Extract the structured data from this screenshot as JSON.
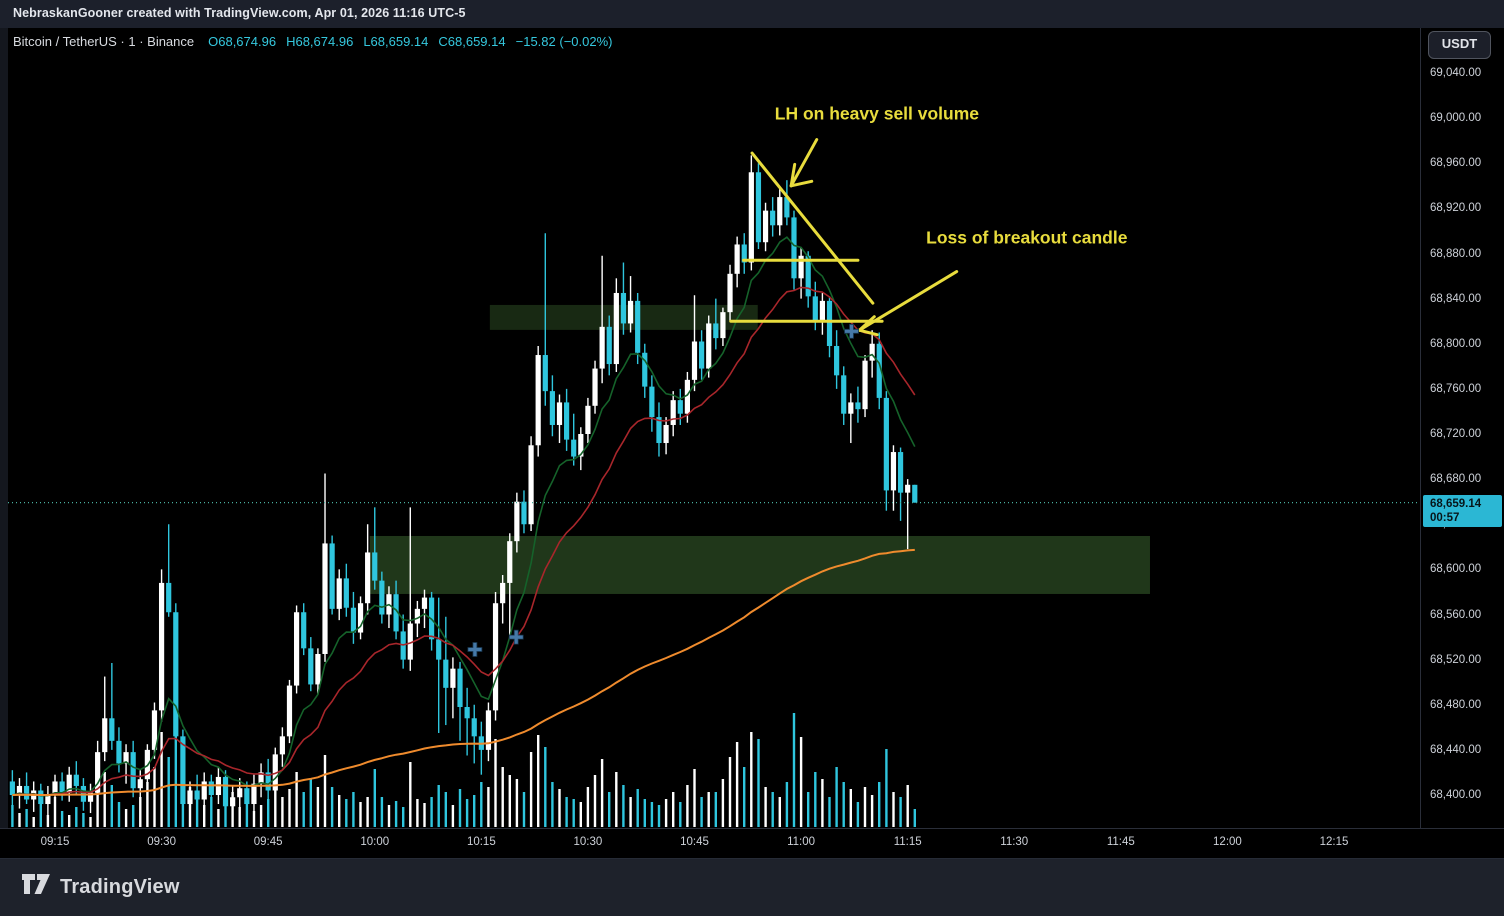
{
  "topbar": {
    "watermark": "NebraskanGooner created with TradingView.com, Apr 01, 2026 11:16 UTC-5"
  },
  "legend": {
    "symbol": "Bitcoin / TetherUS · 1 · Binance",
    "ohlc": [
      "O68,674.96",
      "H68,674.96",
      "L68,659.14",
      "C68,659.14"
    ],
    "change": "−15.82 (−0.02%)"
  },
  "price_axis": {
    "currency_button": "USDT",
    "labels": [
      "69,040.00",
      "69,000.00",
      "68,960.00",
      "68,920.00",
      "68,880.00",
      "68,840.00",
      "68,800.00",
      "68,760.00",
      "68,720.00",
      "68,680.00",
      "68,640.00",
      "68,600.00",
      "68,560.00",
      "68,520.00",
      "68,480.00",
      "68,440.00",
      "68,400.00"
    ],
    "last_price_badge": {
      "price": "68,659.14",
      "countdown": "00:57"
    }
  },
  "time_axis": {
    "labels": [
      "09:15",
      "09:30",
      "09:45",
      "10:00",
      "10:15",
      "10:30",
      "10:45",
      "11:00",
      "11:15",
      "11:30",
      "11:45",
      "12:00",
      "12:15"
    ]
  },
  "footer": {
    "brand": "TradingView"
  },
  "colors": {
    "background": "#000000",
    "topbar_bg": "#1c202b",
    "footer_bg": "#1e222b",
    "up": "#ffffff",
    "down": "#2fc6de",
    "ma_fast": "#15622a",
    "ma_mid": "#a8262b",
    "ma_slow": "#ef8b2d",
    "zone": "#3f6d33",
    "annotation": "#e8dc3d",
    "marker": "#4679a8",
    "dotted_line": "#4ab0a0",
    "axis_text": "#ced2d9",
    "border": "#2a2e39",
    "badge_bg": "#2bb7d4"
  },
  "chart_data": {
    "type": "candlestick",
    "title": "Bitcoin / TetherUS · 1 · Binance",
    "interval": "1 minute",
    "ylabel": "Price (USDT)",
    "ylim": [
      68378,
      69080
    ],
    "visible_time_range": [
      "09:08",
      "12:21"
    ],
    "start_time": "09:09",
    "interval_min": 1,
    "last": {
      "price": 68659.14,
      "open": 68674.96,
      "high": 68674.96,
      "low": 68659.14,
      "change": -15.82,
      "change_pct": -0.02
    },
    "candles": [
      [
        68412,
        68422,
        68390,
        68400
      ],
      [
        68400,
        68415,
        68388,
        68408
      ],
      [
        68408,
        68420,
        68392,
        68396
      ],
      [
        68396,
        68412,
        68385,
        68404
      ],
      [
        68404,
        68410,
        68386,
        68392
      ],
      [
        68392,
        68408,
        68382,
        68400
      ],
      [
        68400,
        68418,
        68390,
        68412
      ],
      [
        68412,
        68420,
        68395,
        68402
      ],
      [
        68402,
        68425,
        68394,
        68418
      ],
      [
        68418,
        68430,
        68400,
        68408
      ],
      [
        68408,
        68415,
        68386,
        68394
      ],
      [
        68394,
        68410,
        68384,
        68402
      ],
      [
        68402,
        68448,
        68396,
        68438
      ],
      [
        68438,
        68505,
        68430,
        68468
      ],
      [
        68468,
        68517,
        68440,
        68448
      ],
      [
        68448,
        68460,
        68420,
        68428
      ],
      [
        68428,
        68445,
        68410,
        68438
      ],
      [
        68438,
        68448,
        68398,
        68406
      ],
      [
        68406,
        68422,
        68392,
        68414
      ],
      [
        68414,
        68445,
        68405,
        68440
      ],
      [
        68440,
        68482,
        68432,
        68475
      ],
      [
        68475,
        68600,
        68465,
        68588
      ],
      [
        68588,
        68640,
        68558,
        68562
      ],
      [
        68562,
        68570,
        68448,
        68452
      ],
      [
        68452,
        68458,
        68385,
        68392
      ],
      [
        68392,
        68412,
        68380,
        68404
      ],
      [
        68404,
        68418,
        68390,
        68396
      ],
      [
        68396,
        68420,
        68388,
        68412
      ],
      [
        68412,
        68418,
        68394,
        68400
      ],
      [
        68400,
        68425,
        68392,
        68416
      ],
      [
        68416,
        68422,
        68384,
        68390
      ],
      [
        68390,
        68408,
        68380,
        68398
      ],
      [
        68398,
        68415,
        68388,
        68406
      ],
      [
        68406,
        68412,
        68386,
        68392
      ],
      [
        68392,
        68418,
        68385,
        68410
      ],
      [
        68410,
        68428,
        68398,
        68420
      ],
      [
        68420,
        68432,
        68395,
        68404
      ],
      [
        68404,
        68442,
        68398,
        68436
      ],
      [
        68436,
        68460,
        68425,
        68452
      ],
      [
        68452,
        68502,
        68446,
        68497
      ],
      [
        68497,
        68568,
        68490,
        68562
      ],
      [
        68562,
        68570,
        68524,
        68530
      ],
      [
        68530,
        68540,
        68492,
        68498
      ],
      [
        68498,
        68530,
        68490,
        68525
      ],
      [
        68525,
        68685,
        68518,
        68623
      ],
      [
        68623,
        68630,
        68560,
        68565
      ],
      [
        68565,
        68600,
        68555,
        68592
      ],
      [
        68592,
        68605,
        68558,
        68566
      ],
      [
        68566,
        68580,
        68534,
        68544
      ],
      [
        68544,
        68576,
        68538,
        68570
      ],
      [
        68570,
        68640,
        68560,
        68615
      ],
      [
        68615,
        68655,
        68582,
        68590
      ],
      [
        68590,
        68598,
        68552,
        68560
      ],
      [
        68560,
        68585,
        68548,
        68578
      ],
      [
        68578,
        68590,
        68538,
        68545
      ],
      [
        68545,
        68560,
        68512,
        68520
      ],
      [
        68520,
        68655,
        68510,
        68552
      ],
      [
        68552,
        68572,
        68540,
        68565
      ],
      [
        68565,
        68582,
        68548,
        68575
      ],
      [
        68575,
        68580,
        68528,
        68538
      ],
      [
        68538,
        68575,
        68455,
        68520
      ],
      [
        68520,
        68558,
        68462,
        68495
      ],
      [
        68495,
        68522,
        68468,
        68512
      ],
      [
        68512,
        68518,
        68448,
        68478
      ],
      [
        68478,
        68495,
        68435,
        68468
      ],
      [
        68468,
        68480,
        68428,
        68452
      ],
      [
        68452,
        68465,
        68418,
        68440
      ],
      [
        68440,
        68482,
        68430,
        68475
      ],
      [
        68475,
        68580,
        68466,
        68570
      ],
      [
        68570,
        68595,
        68552,
        68588
      ],
      [
        68588,
        68632,
        68540,
        68625
      ],
      [
        68625,
        68668,
        68615,
        68660
      ],
      [
        68660,
        68670,
        68632,
        68640
      ],
      [
        68640,
        68718,
        68634,
        68710
      ],
      [
        68710,
        68798,
        68700,
        68790
      ],
      [
        68790,
        68898,
        68745,
        68758
      ],
      [
        68758,
        68772,
        68718,
        68728
      ],
      [
        68728,
        68755,
        68712,
        68748
      ],
      [
        68748,
        68760,
        68705,
        68715
      ],
      [
        68715,
        68738,
        68692,
        68700
      ],
      [
        68700,
        68726,
        68688,
        68720
      ],
      [
        68720,
        68752,
        68712,
        68745
      ],
      [
        68745,
        68785,
        68738,
        68778
      ],
      [
        68778,
        68878,
        68765,
        68815
      ],
      [
        68815,
        68825,
        68772,
        68782
      ],
      [
        68782,
        68858,
        68775,
        68845
      ],
      [
        68845,
        68872,
        68808,
        68818
      ],
      [
        68818,
        68860,
        68810,
        68838
      ],
      [
        68838,
        68845,
        68782,
        68792
      ],
      [
        68792,
        68800,
        68752,
        68762
      ],
      [
        68762,
        68772,
        68722,
        68735
      ],
      [
        68735,
        68748,
        68700,
        68712
      ],
      [
        68712,
        68735,
        68702,
        68728
      ],
      [
        68728,
        68758,
        68718,
        68750
      ],
      [
        68750,
        68760,
        68728,
        68738
      ],
      [
        68738,
        68775,
        68730,
        68768
      ],
      [
        68768,
        68843,
        68758,
        68802
      ],
      [
        68802,
        68812,
        68768,
        68778
      ],
      [
        68778,
        68825,
        68770,
        68818
      ],
      [
        68818,
        68840,
        68795,
        68805
      ],
      [
        68805,
        68832,
        68798,
        68828
      ],
      [
        68828,
        68870,
        68820,
        68862
      ],
      [
        68862,
        68895,
        68850,
        68888
      ],
      [
        68888,
        68898,
        68862,
        68872
      ],
      [
        68872,
        68967,
        68865,
        68952
      ],
      [
        68952,
        68960,
        68884,
        68890
      ],
      [
        68890,
        68925,
        68882,
        68918
      ],
      [
        68918,
        68930,
        68895,
        68905
      ],
      [
        68905,
        68938,
        68896,
        68930
      ],
      [
        68930,
        68945,
        68905,
        68912
      ],
      [
        68912,
        68918,
        68848,
        68858
      ],
      [
        68858,
        68885,
        68840,
        68878
      ],
      [
        68878,
        68882,
        68832,
        68842
      ],
      [
        68842,
        68855,
        68812,
        68820
      ],
      [
        68820,
        68845,
        68808,
        68838
      ],
      [
        68838,
        68842,
        68788,
        68798
      ],
      [
        68798,
        68812,
        68760,
        68772
      ],
      [
        68772,
        68780,
        68728,
        68738
      ],
      [
        68738,
        68756,
        68712,
        68748
      ],
      [
        68748,
        68762,
        68730,
        68742
      ],
      [
        68742,
        68790,
        68735,
        68785
      ],
      [
        68785,
        68812,
        68770,
        68800
      ],
      [
        68800,
        68810,
        68742,
        68752
      ],
      [
        68752,
        68758,
        68652,
        68670
      ],
      [
        68670,
        68710,
        68652,
        68704
      ],
      [
        68704,
        68708,
        68643,
        68668
      ],
      [
        68668,
        68680,
        68618,
        68675
      ],
      [
        68674.96,
        68674.96,
        68659.14,
        68659.14
      ]
    ],
    "volume": [
      22,
      14,
      18,
      10,
      25,
      12,
      30,
      16,
      12,
      20,
      14,
      10,
      38,
      55,
      42,
      25,
      18,
      22,
      30,
      45,
      60,
      95,
      70,
      115,
      85,
      40,
      28,
      22,
      30,
      18,
      24,
      35,
      20,
      26,
      16,
      22,
      28,
      45,
      30,
      38,
      55,
      35,
      48,
      40,
      72,
      40,
      32,
      28,
      35,
      25,
      30,
      58,
      30,
      22,
      26,
      20,
      65,
      28,
      24,
      30,
      42,
      35,
      22,
      38,
      28,
      32,
      45,
      40,
      88,
      60,
      52,
      48,
      35,
      75,
      92,
      80,
      45,
      38,
      30,
      28,
      25,
      40,
      52,
      68,
      35,
      55,
      42,
      30,
      38,
      28,
      25,
      22,
      28,
      35,
      25,
      42,
      58,
      30,
      35,
      35,
      48,
      70,
      85,
      60,
      95,
      88,
      40,
      35,
      30,
      45,
      114,
      90,
      35,
      55,
      48,
      30,
      60,
      45,
      38,
      25,
      40,
      32,
      45,
      78,
      35,
      30,
      42,
      18
    ],
    "moving_averages": [
      {
        "name": "ema-fast",
        "period": 9,
        "color_key": "ma_fast"
      },
      {
        "name": "ema-mid",
        "period": 21,
        "color_key": "ma_mid"
      },
      {
        "name": "ema-slow",
        "period": 165,
        "color_key": "ma_slow",
        "seed": 68400
      }
    ],
    "zones": [
      {
        "name": "supply-zone",
        "t1_min": 61.2,
        "t2_min": 98.9,
        "p_top": 68834.4,
        "p_bot": 68812.3,
        "opacity": 0.38
      },
      {
        "name": "demand-zone",
        "t1_min": 44.3,
        "t2_min": 154.1,
        "p_top": 68629.6,
        "p_bot": 68578.2,
        "opacity": 0.5
      }
    ],
    "lines": [
      {
        "name": "descending-trendline",
        "t1_min": 98.1,
        "p1": 68969,
        "t2_min": 115.1,
        "p2": 68836
      },
      {
        "name": "breakdown-level-upper",
        "t1_min": 96.9,
        "p1": 68874,
        "t2_min": 113.0,
        "p2": 68874
      },
      {
        "name": "breakout-candle-level",
        "t1_min": 95.1,
        "p1": 68820,
        "t2_min": 116.4,
        "p2": 68820
      }
    ],
    "arrows": [
      {
        "name": "lh-arrow",
        "t1_min": 107.2,
        "p1": 68981,
        "t2_min": 103.6,
        "p2": 68940,
        "head": [
          {
            "t_min": 106.5,
            "p": 68944
          },
          {
            "t_min": 104.1,
            "p": 68959
          }
        ]
      },
      {
        "name": "breakout-loss-arrow",
        "t1_min": 126.9,
        "p1": 68864,
        "t2_min": 113.2,
        "p2": 68812,
        "head": [
          {
            "t_min": 115.3,
            "p": 68824
          },
          {
            "t_min": 115.7,
            "p": 68808
          }
        ]
      }
    ],
    "annotations": [
      {
        "name": "lh-label",
        "text": "LH on heavy sell volume",
        "t_min": 101.3,
        "p": 69012
      },
      {
        "name": "breakout-loss-label",
        "text": "Loss of breakout candle",
        "t_min": 122.6,
        "p": 68902
      }
    ],
    "markers": [
      {
        "name": "trade-marker",
        "t_min": 59.1,
        "p": 68529
      },
      {
        "name": "trade-marker",
        "t_min": 64.9,
        "p": 68540
      },
      {
        "name": "trade-marker",
        "t_min": 112.1,
        "p": 68811
      }
    ],
    "last_price_line": {
      "price": 68659.14
    }
  }
}
